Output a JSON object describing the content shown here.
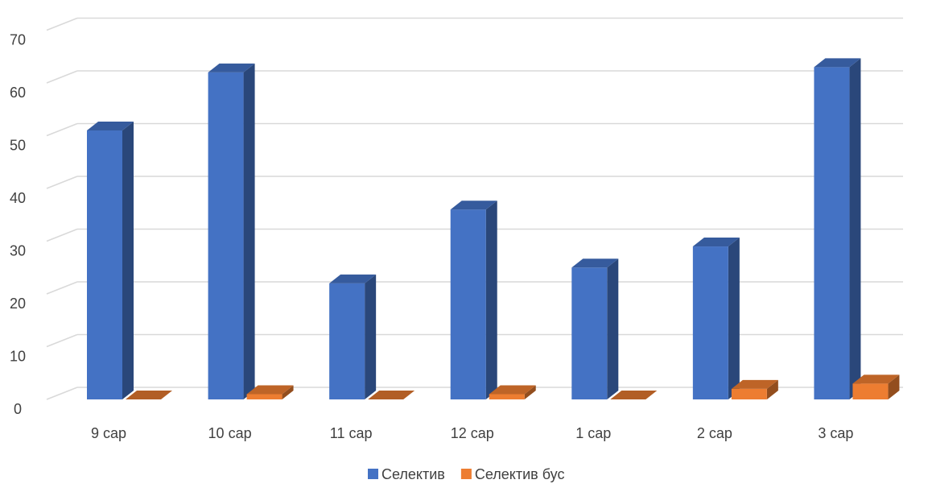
{
  "chart_data": {
    "type": "bar",
    "title": "",
    "xlabel": "",
    "ylabel": "",
    "categories": [
      "9 сар",
      "10 сар",
      "11 сар",
      "12 сар",
      "1 сар",
      "2 сар",
      "3 сар"
    ],
    "series": [
      {
        "name": "Селектив",
        "color": "#4472C4",
        "values": [
          51,
          62,
          22,
          36,
          25,
          29,
          63
        ]
      },
      {
        "name": "Селектив бус",
        "color": "#ED7D31",
        "values": [
          0,
          1,
          0,
          1,
          0,
          2,
          3
        ]
      }
    ],
    "ylim": [
      0,
      70
    ],
    "yticks": [
      0,
      10,
      20,
      30,
      40,
      50,
      60,
      70
    ],
    "grid": true,
    "legend_position": "bottom",
    "style": "3d-clustered-column"
  }
}
